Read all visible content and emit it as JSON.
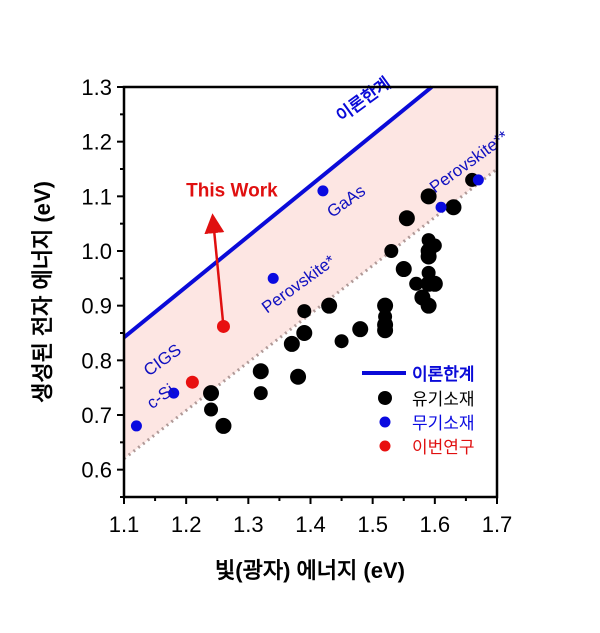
{
  "chart_data": {
    "type": "scatter",
    "xlabel": "빛(광자) 에너지 (eV)",
    "ylabel": "생성된 전자 에너지 (eV)",
    "xlim": [
      1.1,
      1.7
    ],
    "ylim": [
      0.55,
      1.3
    ],
    "xticks": [
      "1.1",
      "1.2",
      "1.3",
      "1.4",
      "1.5",
      "1.6",
      "1.7"
    ],
    "yticks": [
      "0.6",
      "0.7",
      "0.8",
      "0.9",
      "1.0",
      "1.1",
      "1.2",
      "1.3"
    ],
    "legend_position": "bottom-right",
    "limit_line": {
      "name": "이론한계",
      "color": "#0a0ad8",
      "points": [
        [
          1.1,
          0.842
        ],
        [
          1.595,
          1.3
        ]
      ]
    },
    "lower_line": {
      "color": "#b09a98",
      "points": [
        [
          1.1,
          0.62
        ],
        [
          1.7,
          1.15
        ]
      ]
    },
    "band_color": "#fde6e3",
    "series": [
      {
        "name": "유기소재",
        "color": "#000000",
        "points": [
          [
            1.24,
            0.74
          ],
          [
            1.24,
            0.71
          ],
          [
            1.26,
            0.68
          ],
          [
            1.32,
            0.78
          ],
          [
            1.32,
            0.74
          ],
          [
            1.37,
            0.83
          ],
          [
            1.38,
            0.77
          ],
          [
            1.39,
            0.89
          ],
          [
            1.39,
            0.85
          ],
          [
            1.43,
            0.9
          ],
          [
            1.45,
            0.835
          ],
          [
            1.48,
            0.857
          ],
          [
            1.52,
            0.9
          ],
          [
            1.52,
            0.88
          ],
          [
            1.52,
            0.865
          ],
          [
            1.52,
            0.855
          ],
          [
            1.53,
            1.0
          ],
          [
            1.55,
            0.967
          ],
          [
            1.555,
            1.06
          ],
          [
            1.57,
            0.94
          ],
          [
            1.58,
            0.915
          ],
          [
            1.59,
            1.1
          ],
          [
            1.59,
            1.02
          ],
          [
            1.59,
            1.0
          ],
          [
            1.59,
            0.99
          ],
          [
            1.59,
            0.96
          ],
          [
            1.59,
            0.94
          ],
          [
            1.59,
            0.9
          ],
          [
            1.6,
            1.01
          ],
          [
            1.6,
            0.94
          ],
          [
            1.63,
            1.08
          ],
          [
            1.66,
            1.13
          ]
        ]
      },
      {
        "name": "무기소재",
        "color": "#0a0ae0",
        "points": [
          [
            1.12,
            0.68
          ],
          [
            1.18,
            0.74
          ],
          [
            1.34,
            0.95
          ],
          [
            1.42,
            1.11
          ],
          [
            1.61,
            1.08
          ],
          [
            1.67,
            1.13
          ]
        ]
      },
      {
        "name": "이번연구",
        "color": "#e81010",
        "points": [
          [
            1.21,
            0.76
          ],
          [
            1.26,
            0.862
          ]
        ]
      }
    ],
    "annotations": [
      {
        "text": "이론한계",
        "x": 1.45,
        "y": 1.235,
        "rotate": -36,
        "color": "#0a0ad8"
      },
      {
        "text": "This Work",
        "x": 1.2,
        "y": 1.1,
        "rotate": 0,
        "color": "#e01010"
      },
      {
        "text": "Perovskite*",
        "x": 1.33,
        "y": 0.885,
        "rotate": -36,
        "color": "#1010c0"
      },
      {
        "text": "GaAs",
        "x": 1.435,
        "y": 1.06,
        "rotate": -36,
        "color": "#1010c0"
      },
      {
        "text": "Perovskite**",
        "x": 1.6,
        "y": 1.105,
        "rotate": -36,
        "color": "#1010c0"
      },
      {
        "text": "CIGS",
        "x": 1.14,
        "y": 0.77,
        "rotate": -36,
        "color": "#1010c0"
      },
      {
        "text": "c-Si",
        "x": 1.145,
        "y": 0.71,
        "rotate": -36,
        "color": "#1010c0"
      }
    ],
    "arrow": {
      "from": [
        1.26,
        0.862
      ],
      "to": [
        1.243,
        1.06
      ],
      "color": "#e01010"
    }
  }
}
